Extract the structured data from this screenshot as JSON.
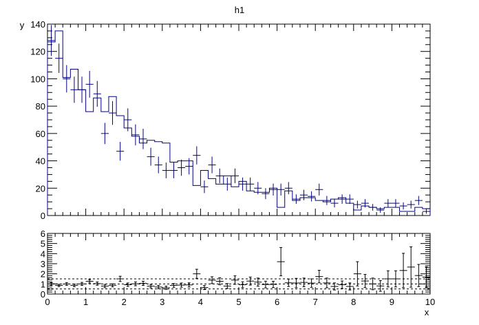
{
  "chart_data": [
    {
      "type": "histogram",
      "title": "h1",
      "xlabel": "",
      "ylabel": "y",
      "xlim": [
        0,
        10
      ],
      "ylim": [
        0,
        140
      ],
      "y_ticks": [
        0,
        20,
        40,
        60,
        80,
        100,
        120,
        140
      ],
      "bins": 50,
      "series": [
        {
          "style": "step",
          "color": "#000080",
          "values": [
            127,
            135,
            101,
            107,
            92,
            76,
            86,
            76,
            87,
            73,
            64,
            58,
            53,
            55,
            54,
            53,
            39,
            40,
            40,
            22,
            33,
            27,
            23,
            29,
            21,
            25,
            18,
            17,
            17,
            20,
            6,
            18,
            11,
            13,
            13,
            11,
            10,
            12,
            13,
            9,
            4,
            7,
            6,
            5,
            6,
            6,
            3,
            3,
            6,
            5
          ]
        },
        {
          "style": "points",
          "color": "#000080",
          "values": [
            128,
            115,
            100,
            92,
            92,
            96,
            89,
            60,
            75,
            47,
            70,
            59,
            56,
            43,
            37,
            33,
            33,
            35,
            36,
            44,
            21,
            37,
            29,
            23,
            29,
            23,
            23,
            20,
            16,
            19,
            19,
            20,
            12,
            15,
            14,
            19,
            11,
            9,
            12,
            12,
            8,
            9,
            6,
            4,
            9,
            9,
            7,
            8,
            11,
            3
          ]
        }
      ]
    },
    {
      "type": "scatter",
      "xlabel": "x",
      "ylabel": "",
      "xlim": [
        0,
        10
      ],
      "ylim": [
        0,
        6
      ],
      "y_ticks": [
        0,
        1,
        2,
        3,
        4,
        5,
        6
      ],
      "x_ticks": [
        0,
        1,
        2,
        3,
        4,
        5,
        6,
        7,
        8,
        9,
        10
      ],
      "reference_lines": [
        0.5,
        1,
        1.5
      ],
      "series": [
        {
          "style": "points-with-errors",
          "color": "#000000",
          "values": [
            1.0,
            0.85,
            0.99,
            0.86,
            1.0,
            1.26,
            1.03,
            0.79,
            0.86,
            1.5,
            0.92,
            1.01,
            1.06,
            0.78,
            0.69,
            0.62,
            0.85,
            0.88,
            0.9,
            2.0,
            0.64,
            1.37,
            1.26,
            0.79,
            1.38,
            0.92,
            1.28,
            1.18,
            0.94,
            0.95,
            3.2,
            1.11,
            1.09,
            1.15,
            1.08,
            1.73,
            1.1,
            0.75,
            0.92,
            0.75,
            2.0,
            1.29,
            1.0,
            0.8,
            1.5,
            1.5,
            2.33,
            2.67,
            1.83,
            1.67
          ],
          "errors": [
            0.13,
            0.11,
            0.14,
            0.13,
            0.15,
            0.17,
            0.16,
            0.16,
            0.15,
            0.26,
            0.17,
            0.19,
            0.21,
            0.17,
            0.16,
            0.16,
            0.19,
            0.21,
            0.21,
            0.45,
            0.2,
            0.34,
            0.35,
            0.24,
            0.42,
            0.29,
            0.4,
            0.4,
            0.33,
            0.31,
            1.4,
            0.37,
            0.46,
            0.43,
            0.42,
            0.62,
            0.48,
            0.35,
            0.37,
            0.35,
            1.2,
            0.65,
            0.58,
            0.53,
            0.8,
            0.8,
            1.7,
            2.0,
            1.1,
            1.0
          ]
        }
      ]
    }
  ]
}
